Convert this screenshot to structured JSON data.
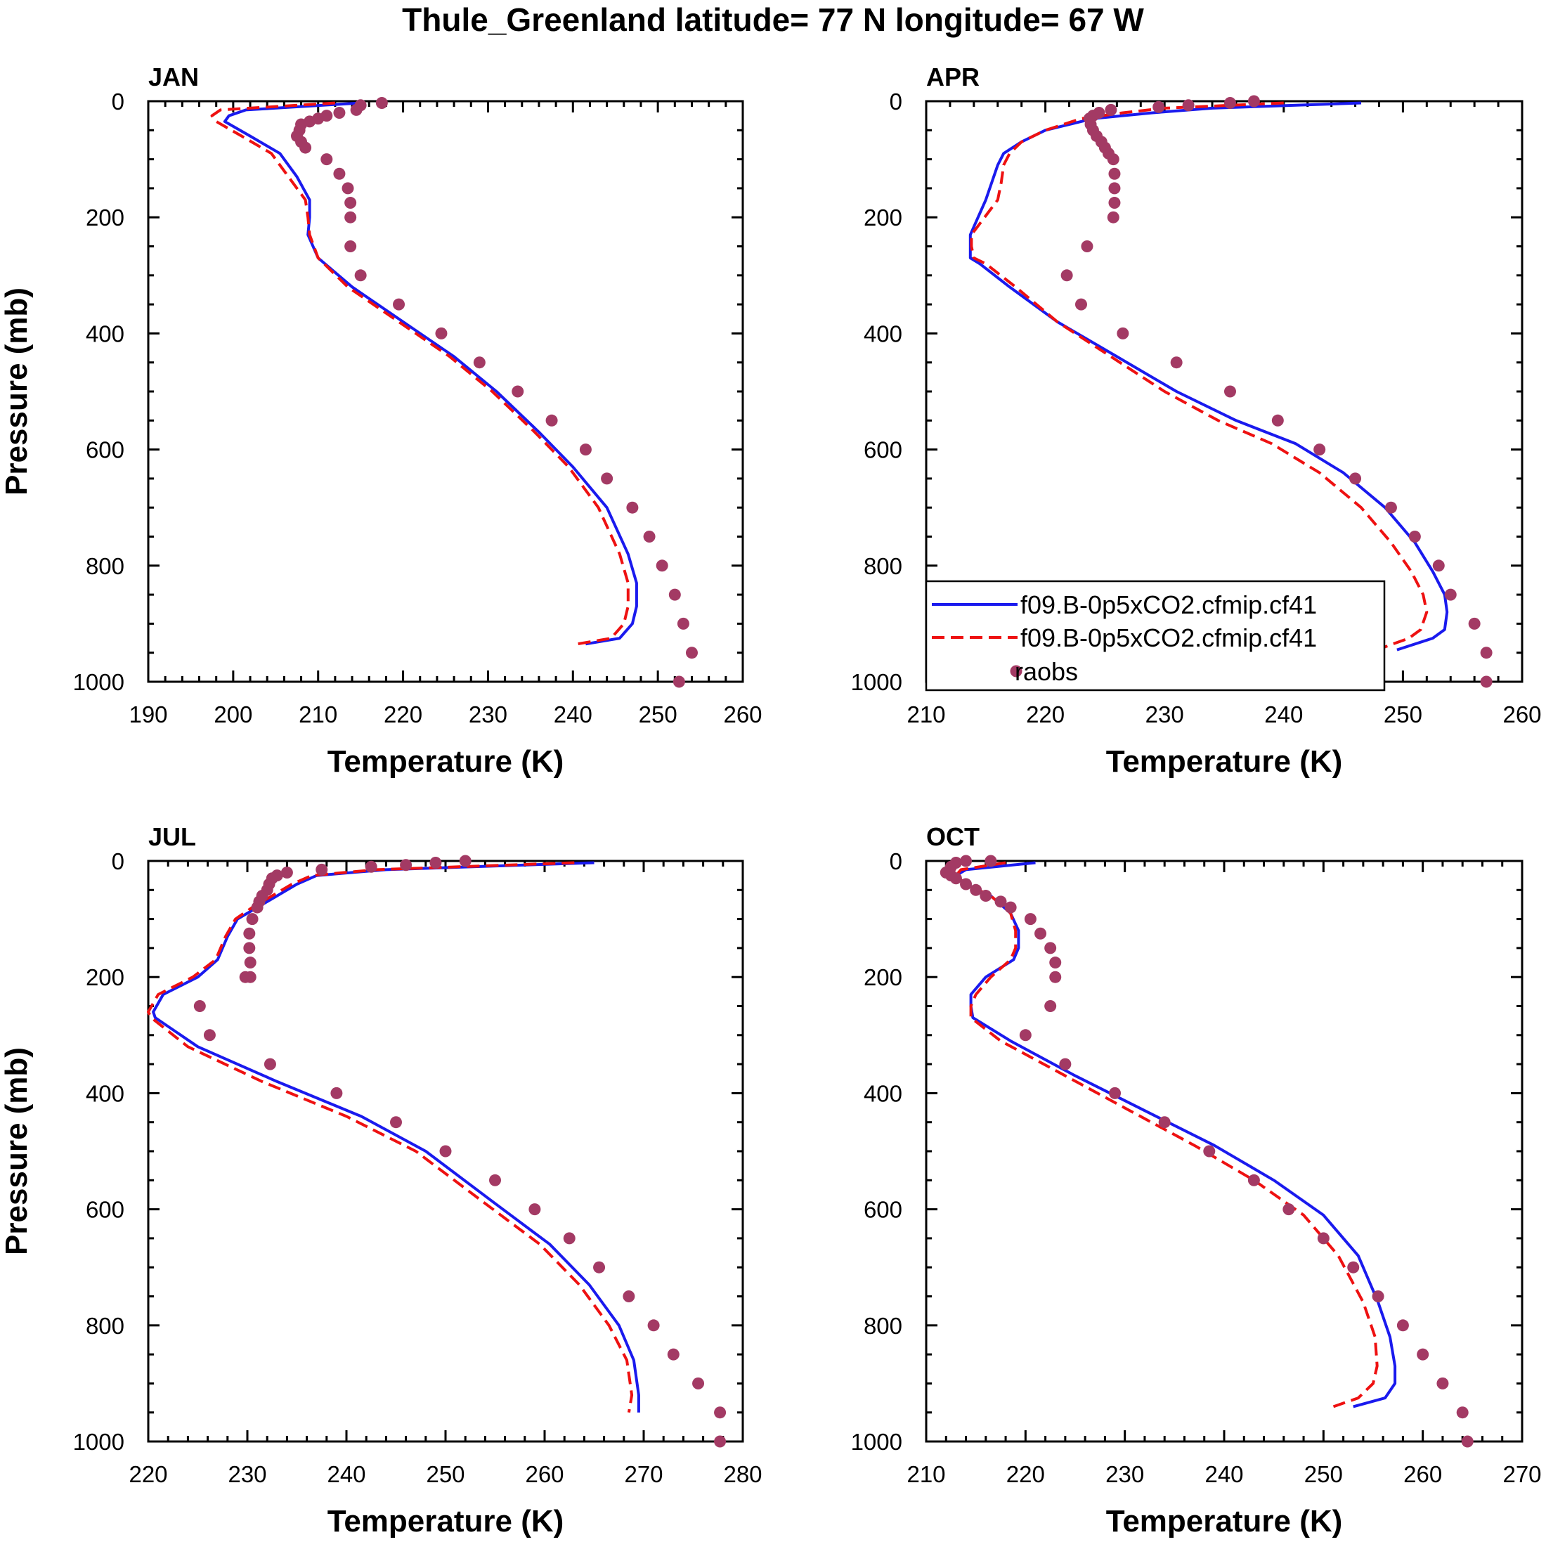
{
  "page": {
    "title": "Thule_Greenland  latitude= 77 N longitude= 67 W"
  },
  "colors": {
    "model1": "#1a1aee",
    "model2": "#ee1111",
    "obs": "#a33a64",
    "axis": "#000000"
  },
  "legend": {
    "entries": [
      {
        "label": "f09.B-0p5xCO2.cfmip.cf41",
        "style": "solid",
        "color": "#1a1aee"
      },
      {
        "label": "f09.B-0p5xCO2.cfmip.cf41",
        "style": "dashed",
        "color": "#ee1111"
      },
      {
        "label": "raobs",
        "style": "marker",
        "color": "#a33a64"
      }
    ]
  },
  "chart_data": [
    {
      "type": "line",
      "title": "JAN",
      "xlabel": "Temperature (K)",
      "ylabel": "Pressure (mb)",
      "xlim": [
        190,
        260
      ],
      "ylim": [
        1000,
        0
      ],
      "xticks": [
        190,
        200,
        210,
        220,
        230,
        240,
        250,
        260
      ],
      "yticks": [
        0,
        200,
        400,
        600,
        800,
        1000
      ],
      "series": [
        {
          "name": "f09.B-0p5xCO2.cfmip.cf41",
          "style": "solid",
          "x": [
            215.0,
            201.5,
            199.5,
            199.0,
            202.0,
            205.5,
            207.5,
            209.0,
            209.0,
            208.8,
            210.0,
            214.0,
            220.0,
            226.0,
            231.0,
            236.0,
            240.0,
            244.0,
            246.5,
            247.5,
            247.5,
            247.0,
            245.5,
            241.5
          ],
          "y": [
            3,
            15,
            25,
            35,
            60,
            90,
            130,
            170,
            200,
            230,
            270,
            320,
            380,
            440,
            500,
            570,
            630,
            700,
            780,
            830,
            870,
            900,
            925,
            935
          ]
        },
        {
          "name": "f09.B-0p5xCO2.cfmip.cf41",
          "style": "dashed",
          "x": [
            212.0,
            198.5,
            197.5,
            198.0,
            201.0,
            204.5,
            206.5,
            208.5,
            208.8,
            209.0,
            210.0,
            213.5,
            219.5,
            225.5,
            230.5,
            235.5,
            239.5,
            243.0,
            245.5,
            246.5,
            246.5,
            246.0,
            244.5,
            240.5
          ],
          "y": [
            3,
            15,
            25,
            35,
            60,
            90,
            130,
            170,
            200,
            230,
            270,
            320,
            380,
            440,
            500,
            570,
            630,
            700,
            780,
            830,
            870,
            900,
            925,
            935
          ]
        },
        {
          "name": "raobs",
          "style": "marker",
          "x": [
            217.5,
            215.0,
            214.5,
            212.5,
            211.0,
            210.0,
            209.0,
            208.0,
            207.8,
            207.5,
            208.0,
            208.5,
            211.0,
            212.5,
            213.5,
            213.8,
            213.8,
            213.8,
            215.0,
            219.5,
            224.5,
            229.0,
            233.5,
            237.5,
            241.5,
            244.0,
            247.0,
            249.0,
            250.5,
            252.0,
            253.0,
            254.0,
            252.5
          ],
          "y": [
            3,
            7,
            15,
            20,
            25,
            30,
            35,
            40,
            50,
            60,
            70,
            80,
            100,
            125,
            150,
            175,
            200,
            250,
            300,
            350,
            400,
            450,
            500,
            550,
            600,
            650,
            700,
            750,
            800,
            850,
            900,
            950,
            1000
          ]
        }
      ]
    },
    {
      "type": "line",
      "title": "APR",
      "xlabel": "Temperature (K)",
      "ylabel": "Pressure (mb)",
      "xlim": [
        210,
        260
      ],
      "ylim": [
        1000,
        0
      ],
      "xticks": [
        210,
        220,
        230,
        240,
        250,
        260
      ],
      "yticks": [
        0,
        200,
        400,
        600,
        800,
        1000
      ],
      "series": [
        {
          "name": "f09.B-0p5xCO2.cfmip.cf41",
          "style": "solid",
          "x": [
            246.5,
            234.0,
            229.0,
            224.0,
            220.0,
            218.0,
            216.5,
            216.0,
            215.5,
            215.0,
            213.7,
            213.7,
            213.7,
            214.5,
            217.0,
            221.0,
            226.0,
            231.0,
            236.0,
            241.0,
            245.0,
            248.5,
            251.0,
            252.5,
            253.5,
            253.7,
            253.5,
            252.5,
            249.5
          ],
          "y": [
            3,
            12,
            20,
            30,
            50,
            70,
            90,
            110,
            140,
            170,
            230,
            250,
            270,
            280,
            320,
            380,
            440,
            500,
            550,
            590,
            640,
            700,
            760,
            810,
            850,
            880,
            910,
            925,
            945
          ]
        },
        {
          "name": "f09.B-0p5xCO2.cfmip.cf41",
          "style": "dashed",
          "x": [
            240.0,
            230.0,
            226.5,
            223.0,
            220.0,
            218.0,
            217.0,
            216.5,
            216.3,
            216.0,
            213.8,
            213.8,
            214.0,
            215.0,
            217.5,
            221.0,
            225.5,
            230.0,
            234.5,
            239.0,
            243.0,
            246.5,
            249.0,
            250.7,
            251.7,
            252.0,
            251.5,
            250.5,
            247.8
          ],
          "y": [
            3,
            12,
            20,
            30,
            50,
            70,
            90,
            110,
            140,
            170,
            230,
            250,
            270,
            280,
            320,
            380,
            440,
            500,
            550,
            590,
            640,
            700,
            760,
            810,
            850,
            880,
            910,
            925,
            945
          ]
        },
        {
          "name": "raobs",
          "style": "marker",
          "x": [
            237.5,
            235.5,
            232.0,
            229.5,
            225.5,
            224.5,
            224.0,
            223.7,
            223.8,
            224.0,
            224.3,
            224.7,
            225.0,
            225.3,
            225.7,
            225.8,
            225.8,
            225.8,
            225.7,
            223.5,
            221.8,
            223.0,
            226.5,
            231.0,
            235.5,
            239.5,
            243.0,
            246.0,
            249.0,
            251.0,
            253.0,
            254.0,
            256.0,
            257.0,
            257.0
          ],
          "y": [
            0,
            3,
            7,
            10,
            15,
            20,
            25,
            30,
            40,
            50,
            60,
            70,
            80,
            90,
            100,
            125,
            150,
            175,
            200,
            250,
            300,
            350,
            400,
            450,
            500,
            550,
            600,
            650,
            700,
            750,
            800,
            850,
            900,
            950,
            1000
          ]
        }
      ]
    },
    {
      "type": "line",
      "title": "JUL",
      "xlabel": "Temperature (K)",
      "ylabel": "Pressure (mb)",
      "xlim": [
        220,
        280
      ],
      "ylim": [
        1000,
        0
      ],
      "xticks": [
        220,
        230,
        240,
        250,
        260,
        270,
        280
      ],
      "yticks": [
        0,
        200,
        400,
        600,
        800,
        1000
      ],
      "series": [
        {
          "name": "f09.B-0p5xCO2.cfmip.cf41",
          "style": "solid",
          "x": [
            265.0,
            244.0,
            237.0,
            235.0,
            233.0,
            231.0,
            229.0,
            228.0,
            227.0,
            225.0,
            221.5,
            220.5,
            220.7,
            225.0,
            233.0,
            241.5,
            248.0,
            255.0,
            260.5,
            264.5,
            267.5,
            269.0,
            269.5,
            269.5
          ],
          "y": [
            3,
            15,
            25,
            40,
            60,
            80,
            100,
            130,
            170,
            200,
            230,
            260,
            270,
            320,
            380,
            440,
            500,
            590,
            660,
            730,
            800,
            860,
            920,
            950
          ]
        },
        {
          "name": "f09.B-0p5xCO2.cfmip.cf41",
          "style": "dashed",
          "x": [
            263.0,
            243.0,
            236.5,
            234.5,
            232.5,
            230.5,
            228.8,
            227.8,
            226.8,
            224.5,
            221.0,
            220.0,
            220.3,
            224.0,
            231.5,
            240.0,
            247.0,
            254.0,
            259.5,
            263.5,
            266.5,
            268.3,
            268.8,
            268.5
          ],
          "y": [
            3,
            15,
            25,
            40,
            60,
            80,
            100,
            130,
            170,
            200,
            230,
            260,
            270,
            320,
            380,
            440,
            500,
            590,
            660,
            730,
            800,
            860,
            920,
            950
          ]
        },
        {
          "name": "raobs",
          "style": "marker",
          "x": [
            252.0,
            249.0,
            246.0,
            242.5,
            237.5,
            234.0,
            233.0,
            232.5,
            232.2,
            232.0,
            231.5,
            231.2,
            231.0,
            230.5,
            230.2,
            230.2,
            230.3,
            230.3,
            229.8,
            225.2,
            226.2,
            232.3,
            239.0,
            245.0,
            250.0,
            255.0,
            259.0,
            262.5,
            265.5,
            268.5,
            271.0,
            273.0,
            275.5,
            277.7,
            277.7
          ],
          "y": [
            0,
            3,
            7,
            10,
            15,
            20,
            25,
            30,
            40,
            50,
            60,
            70,
            80,
            100,
            125,
            150,
            175,
            200,
            200,
            250,
            300,
            350,
            400,
            450,
            500,
            550,
            600,
            650,
            700,
            750,
            800,
            850,
            900,
            950,
            1000
          ]
        }
      ]
    },
    {
      "type": "line",
      "title": "OCT",
      "xlabel": "Temperature (K)",
      "ylabel": "Pressure (mb)",
      "xlim": [
        210,
        270
      ],
      "ylim": [
        1000,
        0
      ],
      "xticks": [
        210,
        220,
        230,
        240,
        250,
        260,
        270
      ],
      "yticks": [
        0,
        200,
        400,
        600,
        800,
        1000
      ],
      "series": [
        {
          "name": "f09.B-0p5xCO2.cfmip.cf41",
          "style": "solid",
          "x": [
            221.0,
            214.0,
            213.0,
            214.0,
            216.5,
            218.5,
            219.3,
            219.3,
            218.8,
            216.0,
            214.5,
            214.5,
            214.7,
            218.5,
            225.0,
            232.0,
            239.0,
            245.0,
            250.0,
            253.5,
            255.5,
            256.7,
            257.2,
            257.2,
            256.2,
            253.0
          ],
          "y": [
            3,
            15,
            25,
            40,
            60,
            90,
            120,
            150,
            170,
            200,
            230,
            250,
            270,
            310,
            370,
            430,
            490,
            550,
            610,
            680,
            760,
            820,
            870,
            900,
            925,
            940
          ]
        },
        {
          "name": "f09.B-0p5xCO2.cfmip.cf41",
          "style": "dashed",
          "x": [
            218.0,
            213.5,
            213.0,
            214.0,
            216.5,
            218.5,
            219.0,
            219.0,
            218.5,
            216.5,
            215.0,
            214.5,
            214.5,
            217.5,
            224.0,
            230.5,
            237.0,
            243.0,
            248.0,
            251.5,
            254.0,
            255.2,
            255.4,
            255.0,
            253.5,
            251.0
          ],
          "y": [
            3,
            15,
            25,
            40,
            60,
            90,
            120,
            150,
            170,
            200,
            230,
            250,
            270,
            310,
            370,
            430,
            490,
            550,
            610,
            680,
            760,
            820,
            870,
            900,
            925,
            940
          ]
        },
        {
          "name": "raobs",
          "style": "marker",
          "x": [
            216.5,
            214.0,
            213.0,
            212.5,
            212.0,
            212.5,
            213.0,
            214.0,
            215.0,
            216.0,
            217.5,
            218.5,
            220.5,
            221.5,
            222.5,
            223.0,
            223.0,
            222.5,
            220.0,
            224.0,
            229.0,
            234.0,
            238.5,
            243.0,
            246.5,
            250.0,
            253.0,
            255.5,
            258.0,
            260.0,
            262.0,
            264.0,
            264.5
          ],
          "y": [
            0,
            0,
            3,
            10,
            20,
            25,
            30,
            40,
            50,
            60,
            70,
            80,
            100,
            125,
            150,
            175,
            200,
            250,
            300,
            350,
            400,
            450,
            500,
            550,
            600,
            650,
            700,
            750,
            800,
            850,
            900,
            950,
            1000
          ]
        }
      ]
    }
  ]
}
